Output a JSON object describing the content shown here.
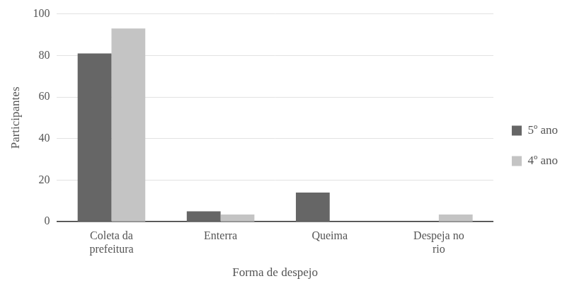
{
  "chart_data": {
    "type": "bar",
    "x_label": "Forma de despejo",
    "y_label": "Participantes",
    "categories": [
      "Coleta da prefeitura",
      "Enterra",
      "Queima",
      "Despeja no rio"
    ],
    "series": [
      {
        "name": "5º ano",
        "color": "#666666",
        "values": [
          81,
          5,
          14,
          0
        ]
      },
      {
        "name": "4º ano",
        "color": "#c4c4c4",
        "values": [
          93,
          3.5,
          0,
          3.5
        ]
      }
    ],
    "ylim": [
      0,
      100
    ],
    "yticks": [
      0,
      20,
      40,
      60,
      80,
      100
    ],
    "grid": true,
    "legend": "right"
  }
}
